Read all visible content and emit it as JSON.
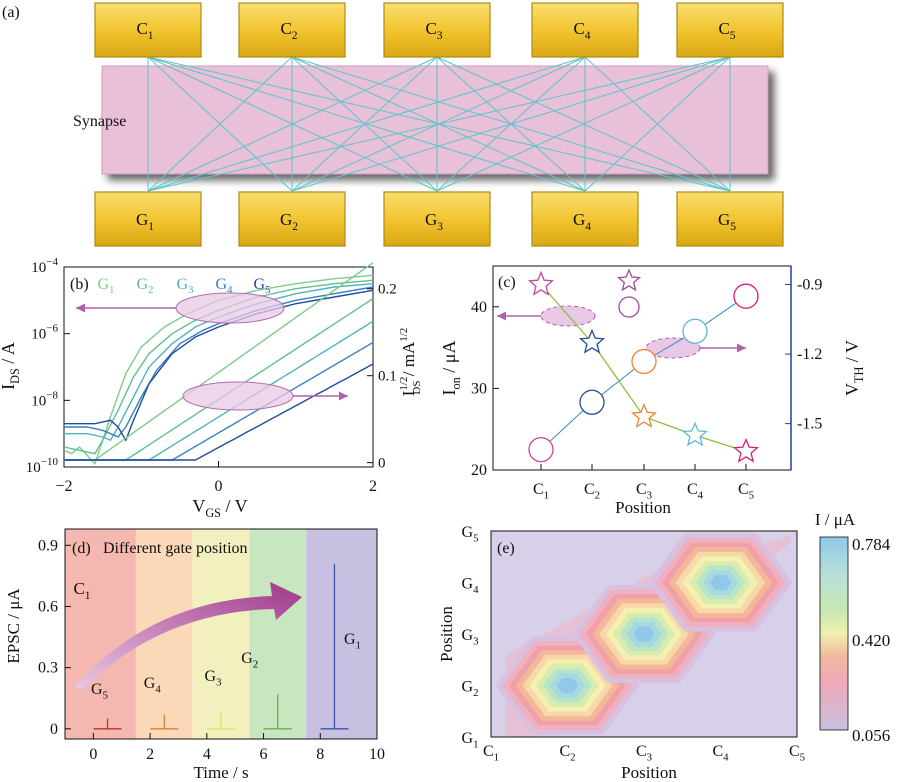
{
  "panel_a": {
    "label": "(a)",
    "synapse_label": "Synapse",
    "top_boxes": [
      {
        "main": "C",
        "sub": "1"
      },
      {
        "main": "C",
        "sub": "2"
      },
      {
        "main": "C",
        "sub": "3"
      },
      {
        "main": "C",
        "sub": "4"
      },
      {
        "main": "C",
        "sub": "5"
      }
    ],
    "bottom_boxes": [
      {
        "main": "G",
        "sub": "1"
      },
      {
        "main": "G",
        "sub": "2"
      },
      {
        "main": "G",
        "sub": "3"
      },
      {
        "main": "G",
        "sub": "4"
      },
      {
        "main": "G",
        "sub": "5"
      }
    ],
    "colors": {
      "box": "#f2c530",
      "synapse": "#e8c0d8",
      "wire": "#5cc4cc"
    }
  },
  "chart_data": [
    {
      "panel": "(b)",
      "type": "line",
      "xlabel_main": "V",
      "xlabel_sub": "GS",
      "xlabel_unit": " / V",
      "ylabel_main": "I",
      "ylabel_sub": "DS",
      "ylabel_unit": " / A",
      "y2label_main": "I",
      "y2label_sup": "1/2",
      "y2label_sub": "DS",
      "y2label_unit": " / mA",
      "y2label_unit_sup": "1/2",
      "xlim": [
        -2,
        2
      ],
      "ylim_log": [
        -10,
        -4
      ],
      "y2lim": [
        -0.005,
        0.225
      ],
      "xticks": [
        "−2",
        "0",
        "2"
      ],
      "yticks": [
        {
          "base": "10",
          "exp": "−4",
          "v": -4
        },
        {
          "base": "10",
          "exp": "−6",
          "v": -6
        },
        {
          "base": "10",
          "exp": "−8",
          "v": -8
        },
        {
          "base": "10",
          "exp": "−10",
          "v": -10
        }
      ],
      "y2ticks": [
        "0",
        "0.1",
        "0.2"
      ],
      "scale": "log",
      "legend": [
        {
          "main": "G",
          "sub": "1",
          "color": "#7fcc8a"
        },
        {
          "main": "G",
          "sub": "2",
          "color": "#5fbf90"
        },
        {
          "main": "G",
          "sub": "3",
          "color": "#4fb3c0"
        },
        {
          "main": "G",
          "sub": "4",
          "color": "#3a7fc4"
        },
        {
          "main": "G",
          "sub": "5",
          "color": "#1f4e9c"
        }
      ],
      "series_log": [
        {
          "color": "#7fcc8a",
          "x": [
            -2,
            -1.9,
            -1.8,
            -1.6,
            -1.4,
            -1.2,
            -1.0,
            -0.7,
            -0.4,
            0,
            0.5,
            1,
            1.5,
            2
          ],
          "y": [
            -9.5,
            -9.6,
            -9.4,
            -9.9,
            -8.5,
            -7.2,
            -6.4,
            -5.8,
            -5.4,
            -5.0,
            -4.7,
            -4.5,
            -4.35,
            -4.25
          ]
        },
        {
          "color": "#5fbf90",
          "x": [
            -2,
            -1.8,
            -1.6,
            -1.5,
            -1.3,
            -1.1,
            -0.9,
            -0.6,
            -0.3,
            0,
            0.5,
            1,
            1.5,
            2
          ],
          "y": [
            -9.4,
            -9.5,
            -9.6,
            -9.2,
            -8.3,
            -7.3,
            -6.6,
            -6.0,
            -5.6,
            -5.3,
            -4.9,
            -4.65,
            -4.5,
            -4.4
          ]
        },
        {
          "color": "#4fb3c0",
          "x": [
            -2,
            -1.7,
            -1.5,
            -1.4,
            -1.3,
            -1.1,
            -0.9,
            -0.6,
            -0.3,
            0,
            0.5,
            1,
            1.5,
            2
          ],
          "y": [
            -9.0,
            -9.0,
            -9.1,
            -9.2,
            -8.8,
            -7.9,
            -7.0,
            -6.3,
            -5.8,
            -5.5,
            -5.1,
            -4.8,
            -4.6,
            -4.5
          ]
        },
        {
          "color": "#3a7fc4",
          "x": [
            -2,
            -1.7,
            -1.5,
            -1.3,
            -1.2,
            -1.0,
            -0.8,
            -0.5,
            -0.2,
            0,
            0.5,
            1,
            1.5,
            2
          ],
          "y": [
            -8.8,
            -8.8,
            -8.9,
            -9.1,
            -8.8,
            -7.9,
            -7.1,
            -6.3,
            -5.9,
            -5.7,
            -5.3,
            -5.0,
            -4.8,
            -4.6
          ]
        },
        {
          "color": "#1f4e9c",
          "x": [
            -2,
            -1.6,
            -1.4,
            -1.3,
            -1.2,
            -1.1,
            -0.9,
            -0.6,
            -0.3,
            0,
            0.5,
            1,
            1.5,
            2
          ],
          "y": [
            -8.7,
            -8.7,
            -8.6,
            -8.8,
            -9.2,
            -8.6,
            -7.5,
            -6.6,
            -6.1,
            -5.8,
            -5.4,
            -5.1,
            -4.9,
            -4.7
          ]
        }
      ],
      "series_sqrt": [
        {
          "color": "#7fcc8a",
          "vth": -1.6,
          "k": 0.063
        },
        {
          "color": "#5fbf90",
          "vth": -1.2,
          "k": 0.058
        },
        {
          "color": "#4fb3c0",
          "vth": -0.9,
          "k": 0.055
        },
        {
          "color": "#3a7fc4",
          "vth": -0.6,
          "k": 0.052
        },
        {
          "color": "#1f4e9c",
          "vth": -0.3,
          "k": 0.048
        }
      ],
      "annotations": {
        "ellipse_color": "#e8c8e4",
        "arrow_color": "#b060a8"
      }
    },
    {
      "panel": "(c)",
      "type": "scatter",
      "xlabel": "Position",
      "ylabel_main": "I",
      "ylabel_sub": "on",
      "ylabel_unit": " / μA",
      "y2label_main": "V",
      "y2label_sub": "TH",
      "y2label_unit": " / V",
      "categories": [
        {
          "main": "C",
          "sub": "1"
        },
        {
          "main": "C",
          "sub": "2"
        },
        {
          "main": "C",
          "sub": "3"
        },
        {
          "main": "C",
          "sub": "4"
        },
        {
          "main": "C",
          "sub": "5"
        }
      ],
      "ylim": [
        20,
        45
      ],
      "y2lim": [
        -1.7,
        -0.82
      ],
      "yticks": [
        "20",
        "30",
        "40"
      ],
      "y2ticks": [
        "-0.9",
        "-1.2",
        "-1.5"
      ],
      "series": [
        {
          "name": "Ion",
          "marker": "circle",
          "line_color": "#3a8cc0",
          "values": [
            22.5,
            28.3,
            33.3,
            37.0,
            41.3
          ],
          "colors": [
            "#c04a9c",
            "#1f4e9c",
            "#f08030",
            "#5bb8d8",
            "#d82070"
          ]
        },
        {
          "name": "VTH",
          "marker": "star",
          "line_color": "#8cbf3a",
          "values": [
            -0.9,
            -1.15,
            -1.47,
            -1.55,
            -1.62
          ],
          "colors": [
            "#c04a9c",
            "#1f4e9c",
            "#f08030",
            "#5bb8d8",
            "#d82070"
          ]
        }
      ],
      "legend_markers": [
        "star",
        "circle"
      ],
      "legend_color": "#a04aa0"
    },
    {
      "panel": "(d)",
      "type": "line",
      "title": "Different gate position",
      "xlabel": "Time / s",
      "ylabel": "EPSC / μA",
      "xlim": [
        -1,
        10
      ],
      "ylim": [
        -0.05,
        0.98
      ],
      "xticks": [
        "0",
        "2",
        "4",
        "6",
        "8",
        "10"
      ],
      "yticks": [
        "0",
        "0.3",
        "0.6",
        "0.9"
      ],
      "start_label": {
        "main": "C",
        "sub": "1"
      },
      "bands": [
        {
          "x0": -1,
          "x1": 1.5,
          "color": "#f5b8b0"
        },
        {
          "x0": 1.5,
          "x1": 3.5,
          "color": "#fbd8b8"
        },
        {
          "x0": 3.5,
          "x1": 5.5,
          "color": "#f3f0c0"
        },
        {
          "x0": 5.5,
          "x1": 7.5,
          "color": "#c8e6c0"
        },
        {
          "x0": 7.5,
          "x1": 10,
          "color": "#c8c0e0"
        }
      ],
      "pulses": [
        {
          "label_main": "G",
          "label_sub": "5",
          "t": 0.5,
          "peak": 0.05,
          "color": "#c03030"
        },
        {
          "label_main": "G",
          "label_sub": "4",
          "t": 2.5,
          "peak": 0.07,
          "color": "#e08030"
        },
        {
          "label_main": "G",
          "label_sub": "3",
          "t": 4.5,
          "peak": 0.08,
          "color": "#e0e060"
        },
        {
          "label_main": "G",
          "label_sub": "2",
          "t": 6.5,
          "peak": 0.17,
          "color": "#70b040"
        },
        {
          "label_main": "G",
          "label_sub": "1",
          "t": 8.5,
          "peak": 0.81,
          "color": "#4050b0"
        }
      ]
    },
    {
      "panel": "(e)",
      "type": "heatmap",
      "xlabel": "Position",
      "ylabel": "Position",
      "xcategories": [
        {
          "main": "C",
          "sub": "1"
        },
        {
          "main": "C",
          "sub": "2"
        },
        {
          "main": "C",
          "sub": "3"
        },
        {
          "main": "C",
          "sub": "4"
        },
        {
          "main": "C",
          "sub": "5"
        }
      ],
      "ycategories": [
        {
          "main": "G",
          "sub": "1"
        },
        {
          "main": "G",
          "sub": "2"
        },
        {
          "main": "G",
          "sub": "3"
        },
        {
          "main": "G",
          "sub": "4"
        },
        {
          "main": "G",
          "sub": "5"
        }
      ],
      "colorbar_label": "I / μA",
      "colorbar_ticks": [
        "0.784",
        "0.420",
        "0.056"
      ],
      "hotspots": [
        {
          "x": 1,
          "y": 1,
          "value": 0.784
        },
        {
          "x": 2,
          "y": 2,
          "value": 0.784
        },
        {
          "x": 3,
          "y": 3,
          "value": 0.784
        }
      ],
      "background_value": 0.056
    }
  ]
}
